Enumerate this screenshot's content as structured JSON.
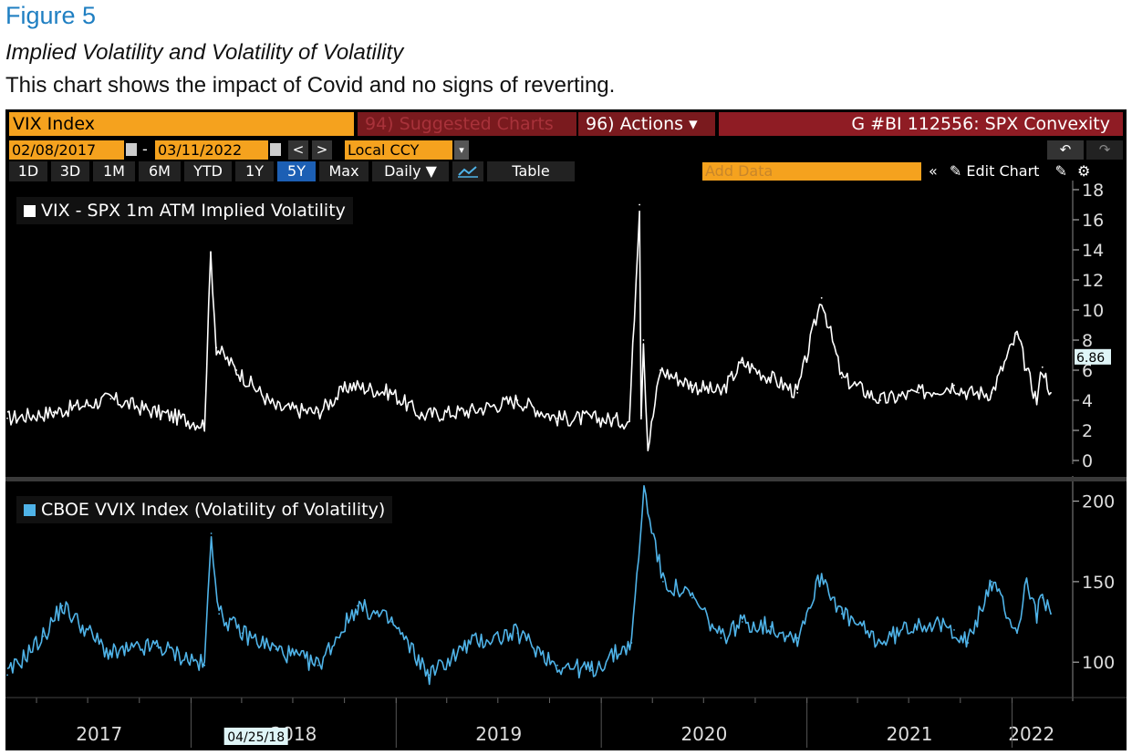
{
  "figure": {
    "label": "Figure 5",
    "subtitle": "Implied Volatility and Volatility of Volatility",
    "description": "This chart shows the impact of Covid and no signs of reverting."
  },
  "toolbar": {
    "ticker": "VIX Index",
    "suggested": "94) Suggested Charts",
    "actions": "96) Actions ▾",
    "chart_code": "G #BI 112556: SPX Convexity",
    "start_date": "02/08/2017",
    "end_date": "03/11/2022",
    "date_sep": "-",
    "prev": "<",
    "next": ">",
    "currency": "Local CCY",
    "currency_arrow": "▾",
    "undo": "↶",
    "redo": "↷",
    "periods": [
      "1D",
      "3D",
      "1M",
      "6M",
      "YTD",
      "1Y",
      "5Y",
      "Max"
    ],
    "active_period": "5Y",
    "frequency": "Daily ▼",
    "table": "Table",
    "add_data": "Add Data",
    "collapse": "«",
    "edit_chart": "✎ Edit Chart",
    "settings_icon": "gear-icon"
  },
  "colors": {
    "orange": "#f5a21e",
    "maroon": "#8f1c24",
    "vvix": "#4fb3e8",
    "vix": "#ffffff",
    "active": "#1c5fb4"
  },
  "chart_data": [
    {
      "type": "line",
      "series": [
        {
          "name": "VIX - SPX 1m ATM Implied Volatility",
          "color": "#ffffff",
          "x": [
            "2017-02-08",
            "2017-05-01",
            "2017-08-11",
            "2017-11-01",
            "2018-01-25",
            "2018-02-05",
            "2018-02-15",
            "2018-03-23",
            "2018-06-01",
            "2018-08-15",
            "2018-10-11",
            "2018-12-24",
            "2019-02-15",
            "2019-05-13",
            "2019-08-05",
            "2019-10-15",
            "2019-12-15",
            "2020-02-20",
            "2020-03-09",
            "2020-03-12",
            "2020-03-16",
            "2020-03-24",
            "2020-04-15",
            "2020-06-11",
            "2020-08-01",
            "2020-09-08",
            "2020-10-28",
            "2020-12-15",
            "2021-01-27",
            "2021-03-04",
            "2021-05-12",
            "2021-07-19",
            "2021-09-20",
            "2021-10-15",
            "2021-11-26",
            "2022-01-10",
            "2022-01-27",
            "2022-02-14",
            "2022-02-24",
            "2022-03-11"
          ],
          "y": [
            2.8,
            3.2,
            4.1,
            3.2,
            2.4,
            13.8,
            7.5,
            6.0,
            3.5,
            3.2,
            5.0,
            4.5,
            3.0,
            3.3,
            4.0,
            2.8,
            2.8,
            2.6,
            17.0,
            3.0,
            8.0,
            0.8,
            6.0,
            5.0,
            4.5,
            6.5,
            5.5,
            4.5,
            10.8,
            5.5,
            4.0,
            4.5,
            5.0,
            4.5,
            4.5,
            8.4,
            6.0,
            4.0,
            6.2,
            4.5
          ],
          "y_axis_ticks": [
            "0",
            "2",
            "4",
            "6",
            "8",
            "10",
            "12",
            "14",
            "16",
            "18"
          ],
          "ylim": [
            0,
            18
          ],
          "last_value": "6.86"
        }
      ]
    },
    {
      "type": "line",
      "series": [
        {
          "name": "CBOE VVIX Index (Volatility of Volatility)",
          "color": "#4fb3e8",
          "x": [
            "2017-02-08",
            "2017-04-13",
            "2017-05-17",
            "2017-08-10",
            "2017-11-01",
            "2018-01-25",
            "2018-02-06",
            "2018-02-20",
            "2018-04-02",
            "2018-06-01",
            "2018-08-15",
            "2018-10-24",
            "2018-12-24",
            "2019-03-01",
            "2019-05-13",
            "2019-08-05",
            "2019-10-15",
            "2019-12-15",
            "2020-02-24",
            "2020-03-17",
            "2020-04-20",
            "2020-06-11",
            "2020-08-01",
            "2020-09-08",
            "2020-10-28",
            "2020-12-15",
            "2021-01-27",
            "2021-03-04",
            "2021-05-12",
            "2021-07-19",
            "2021-09-20",
            "2021-10-15",
            "2021-11-26",
            "2022-01-10",
            "2022-01-27",
            "2022-02-14",
            "2022-02-24",
            "2022-03-11"
          ],
          "y": [
            92,
            116,
            135,
            105,
            110,
            98,
            180,
            130,
            118,
            108,
            98,
            135,
            125,
            92,
            112,
            118,
            98,
            95,
            112,
            207,
            150,
            140,
            115,
            125,
            122,
            115,
            155,
            130,
            112,
            125,
            120,
            112,
            150,
            118,
            150,
            130,
            140,
            130
          ],
          "y_axis_ticks": [
            "100",
            "150",
            "200"
          ],
          "ylim": [
            78,
            210
          ]
        }
      ]
    }
  ],
  "x_axis": {
    "years": [
      "2017",
      "2018",
      "2019",
      "2020",
      "2021",
      "2022"
    ],
    "cursor_label": "04/25/18",
    "start": "2017-02-08",
    "end": "2022-03-11"
  }
}
